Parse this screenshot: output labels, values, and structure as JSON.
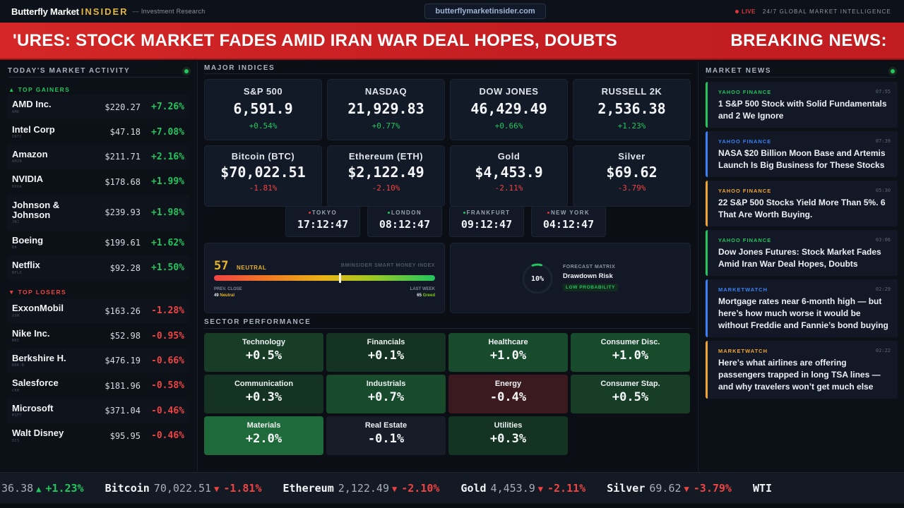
{
  "header": {
    "brand_main": "Butterfly Market",
    "brand_accent": "INSIDER",
    "brand_sub": "Investment Research",
    "url": "butterflymarketinsider.com",
    "live_label": "LIVE",
    "tagline": "24/7 GLOBAL MARKET INTELLIGENCE"
  },
  "breaking": {
    "scroll_text": "'URES: STOCK MARKET FADES AMID IRAN WAR DEAL HOPES, DOUBTS",
    "label": "BREAKING NEWS:"
  },
  "market_activity": {
    "title": "TODAY'S MARKET ACTIVITY",
    "gainers_label": "▲ TOP GAINERS",
    "losers_label": "▼ TOP LOSERS",
    "gainers": [
      {
        "name": "AMD Inc.",
        "symbol": "AMD",
        "price": "$220.27",
        "change": "+7.26%"
      },
      {
        "name": "Intel Corp",
        "symbol": "INTC",
        "price": "$47.18",
        "change": "+7.08%"
      },
      {
        "name": "Amazon",
        "symbol": "AMZN",
        "price": "$211.71",
        "change": "+2.16%"
      },
      {
        "name": "NVIDIA",
        "symbol": "NVDA",
        "price": "$178.68",
        "change": "+1.99%"
      },
      {
        "name": "Johnson & Johnson",
        "symbol": "JNJ",
        "price": "$239.93",
        "change": "+1.98%"
      },
      {
        "name": "Boeing",
        "symbol": "BA",
        "price": "$199.61",
        "change": "+1.62%"
      },
      {
        "name": "Netflix",
        "symbol": "NFLX",
        "price": "$92.28",
        "change": "+1.50%"
      }
    ],
    "losers": [
      {
        "name": "ExxonMobil",
        "symbol": "XOM",
        "price": "$163.26",
        "change": "-1.28%"
      },
      {
        "name": "Nike Inc.",
        "symbol": "NKE",
        "price": "$52.98",
        "change": "-0.95%"
      },
      {
        "name": "Berkshire H.",
        "symbol": "BRK-B",
        "price": "$476.19",
        "change": "-0.66%"
      },
      {
        "name": "Salesforce",
        "symbol": "CRM",
        "price": "$181.96",
        "change": "-0.58%"
      },
      {
        "name": "Microsoft",
        "symbol": "MSFT",
        "price": "$371.04",
        "change": "-0.46%"
      },
      {
        "name": "Walt Disney",
        "symbol": "DIS",
        "price": "$95.95",
        "change": "-0.46%"
      }
    ]
  },
  "indices": {
    "title": "MAJOR INDICES",
    "items": [
      {
        "name": "S&P 500",
        "value": "6,591.9",
        "change": "+0.54%",
        "dir": "up"
      },
      {
        "name": "NASDAQ",
        "value": "21,929.83",
        "change": "+0.77%",
        "dir": "up"
      },
      {
        "name": "DOW JONES",
        "value": "46,429.49",
        "change": "+0.66%",
        "dir": "up"
      },
      {
        "name": "RUSSELL 2K",
        "value": "2,536.38",
        "change": "+1.23%",
        "dir": "up"
      },
      {
        "name": "Bitcoin (BTC)",
        "value": "$70,022.51",
        "change": "-1.81%",
        "dir": "down"
      },
      {
        "name": "Ethereum (ETH)",
        "value": "$2,122.49",
        "change": "-2.10%",
        "dir": "down"
      },
      {
        "name": "Gold",
        "value": "$4,453.9",
        "change": "-2.11%",
        "dir": "down"
      },
      {
        "name": "Silver",
        "value": "$69.62",
        "change": "-3.79%",
        "dir": "down"
      }
    ]
  },
  "clocks": [
    {
      "city": "TOKYO",
      "time": "17:12:47",
      "status_color": "#e0363a"
    },
    {
      "city": "LONDON",
      "time": "08:12:47",
      "status_color": "#22c55e"
    },
    {
      "city": "FRANKFURT",
      "time": "09:12:47",
      "status_color": "#22c55e"
    },
    {
      "city": "NEW YORK",
      "time": "04:12:47",
      "status_color": "#e0363a"
    }
  ],
  "smart_money": {
    "score": "57",
    "mood": "NEUTRAL",
    "index_name": "BMINSIDER SMART MONEY INDEX",
    "level_percent": 57,
    "prev_label": "PREV. CLOSE",
    "prev_score": "49",
    "prev_mood": "Neutral",
    "week_label": "LAST WEEK",
    "week_score": "65",
    "week_mood": "Greed"
  },
  "forecast": {
    "percent_label": "10%",
    "percent_value": 10,
    "kicker": "FORECAST MATRIX",
    "title": "Drawdown Risk",
    "badge": "LOW PROBABILITY"
  },
  "sectors": {
    "title": "SECTOR PERFORMANCE",
    "items": [
      {
        "name": "Technology",
        "change": "+0.5%",
        "value": 0.5
      },
      {
        "name": "Financials",
        "change": "+0.1%",
        "value": 0.1
      },
      {
        "name": "Healthcare",
        "change": "+1.0%",
        "value": 1.0
      },
      {
        "name": "Consumer Disc.",
        "change": "+1.0%",
        "value": 1.0
      },
      {
        "name": "Communication",
        "change": "+0.3%",
        "value": 0.3
      },
      {
        "name": "Industrials",
        "change": "+0.7%",
        "value": 0.7
      },
      {
        "name": "Energy",
        "change": "-0.4%",
        "value": -0.4
      },
      {
        "name": "Consumer Stap.",
        "change": "+0.5%",
        "value": 0.5
      },
      {
        "name": "Materials",
        "change": "+2.0%",
        "value": 2.0
      },
      {
        "name": "Real Estate",
        "change": "-0.1%",
        "value": -0.1
      },
      {
        "name": "Utilities",
        "change": "+0.3%",
        "value": 0.3
      }
    ]
  },
  "news": {
    "title": "MARKET NEWS",
    "items": [
      {
        "source": "YAHOO FINANCE",
        "time": "07:55",
        "headline": "1 S&P 500 Stock with Solid Fundamentals and 2 We Ignore",
        "color": "#22c55e"
      },
      {
        "source": "YAHOO FINANCE",
        "time": "07:39",
        "headline": "NASA $20 Billion Moon Base and Artemis Launch Is Big Business for These Stocks",
        "color": "#3b82f6"
      },
      {
        "source": "YAHOO FINANCE",
        "time": "05:30",
        "headline": "22 S&P 500 Stocks Yield More Than 5%. 6 That Are Worth Buying.",
        "color": "#f0a531"
      },
      {
        "source": "YAHOO FINANCE",
        "time": "03:06",
        "headline": "Dow Jones Futures: Stock Market Fades Amid Iran War Deal Hopes, Doubts",
        "color": "#22c55e"
      },
      {
        "source": "MARKETWATCH",
        "time": "02:29",
        "headline": "Mortgage rates near 6-month high — but here’s how much worse it would be without Freddie and Fannie’s bond buying",
        "color": "#3b82f6"
      },
      {
        "source": "MARKETWATCH",
        "time": "02:22",
        "headline": "Here’s what airlines are offering passengers trapped in long TSA lines — and why travelers won’t get much else",
        "color": "#f0a531"
      }
    ]
  },
  "ticker": [
    {
      "name": "",
      "value": "36.38",
      "arrow": "▲",
      "change": "+1.23%",
      "dir": "up"
    },
    {
      "name": "Bitcoin",
      "value": "70,022.51",
      "arrow": "▼",
      "change": "-1.81%",
      "dir": "down"
    },
    {
      "name": "Ethereum",
      "value": "2,122.49",
      "arrow": "▼",
      "change": "-2.10%",
      "dir": "down"
    },
    {
      "name": "Gold",
      "value": "4,453.9",
      "arrow": "▼",
      "change": "-2.11%",
      "dir": "down"
    },
    {
      "name": "Silver",
      "value": "69.62",
      "arrow": "▼",
      "change": "-3.79%",
      "dir": "down"
    },
    {
      "name": "WTI",
      "value": "",
      "arrow": "",
      "change": "",
      "dir": "down"
    }
  ],
  "colors": {
    "up": "#22c55e",
    "down": "#ef4444",
    "accent": "#e2b53d",
    "breaking": "#d42626"
  }
}
